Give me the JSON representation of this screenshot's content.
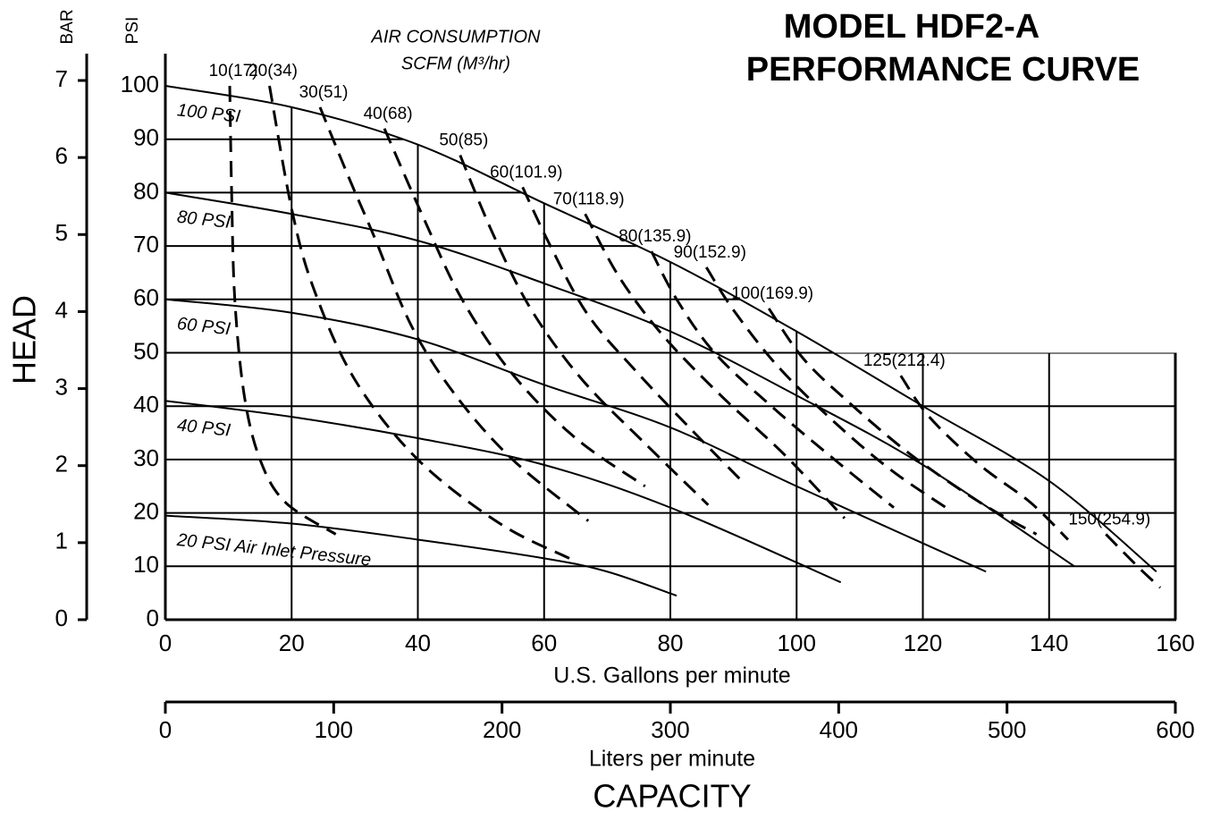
{
  "chart_data": {
    "type": "line",
    "title": "MODEL HDF2-A",
    "subtitle": "PERFORMANCE CURVE",
    "annotation_title": "AIR CONSUMPTION",
    "annotation_units": "SCFM (M³/hr)",
    "xlabel": "U.S. Gallons per minute",
    "x2label": "Liters per minute",
    "capacity_label": "CAPACITY",
    "ylabel": "HEAD",
    "y_unit": "PSI",
    "y2_unit": "BAR",
    "xlim": [
      0,
      160
    ],
    "xticks": [
      0,
      20,
      40,
      60,
      80,
      100,
      120,
      140,
      160
    ],
    "x2lim": [
      0,
      600
    ],
    "x2ticks": [
      0,
      100,
      200,
      300,
      400,
      500,
      600
    ],
    "ylim": [
      0,
      100
    ],
    "yticks": [
      0,
      10,
      20,
      30,
      40,
      50,
      60,
      70,
      80,
      90,
      100
    ],
    "y2lim": [
      0,
      7
    ],
    "y2ticks": [
      0,
      1,
      2,
      3,
      4,
      5,
      6,
      7
    ],
    "grid": true,
    "color": "#000000",
    "series": [
      {
        "name": "100 PSI",
        "style": "solid",
        "x": [
          0,
          20,
          40,
          60,
          80,
          100,
          120,
          140,
          157
        ],
        "values": [
          100,
          96,
          89,
          78,
          67,
          54,
          40,
          26,
          9
        ]
      },
      {
        "name": "80 PSI",
        "style": "solid",
        "x": [
          0,
          20,
          40,
          60,
          80,
          100,
          120,
          144
        ],
        "values": [
          80,
          76,
          71,
          63,
          54,
          42,
          29,
          10
        ]
      },
      {
        "name": "60 PSI",
        "style": "solid",
        "x": [
          0,
          20,
          40,
          60,
          80,
          100,
          130
        ],
        "values": [
          60,
          57.5,
          52.5,
          44,
          36,
          25,
          9
        ]
      },
      {
        "name": "40 PSI",
        "style": "solid",
        "x": [
          0,
          20,
          40,
          60,
          80,
          107
        ],
        "values": [
          41,
          38,
          34,
          29,
          21,
          7
        ]
      },
      {
        "name": "20 PSI Air Inlet Pressure",
        "style": "solid",
        "x": [
          0,
          20,
          40,
          60,
          70,
          81
        ],
        "values": [
          19.5,
          18,
          15,
          11.5,
          9,
          4.5
        ]
      },
      {
        "name": "10(17)",
        "style": "dashed",
        "x": [
          10.2,
          10.5,
          11,
          12.5,
          15,
          19,
          27
        ],
        "values": [
          100,
          80,
          60,
          42,
          30,
          22,
          16
        ]
      },
      {
        "name": "20(34)",
        "style": "dashed",
        "x": [
          16.5,
          20,
          23.5,
          30,
          40,
          53,
          64
        ],
        "values": [
          100,
          77,
          62,
          45,
          30,
          18,
          11.5
        ]
      },
      {
        "name": "30(51)",
        "style": "dashed",
        "x": [
          24.5,
          29,
          33,
          39,
          46,
          55,
          67
        ],
        "values": [
          96,
          83,
          72,
          55,
          42,
          30,
          18.5
        ]
      },
      {
        "name": "40(68)",
        "style": "dashed",
        "x": [
          34.7,
          41,
          47,
          55,
          65,
          76
        ],
        "values": [
          92,
          75,
          60,
          46,
          34,
          25
        ]
      },
      {
        "name": "50(85)",
        "style": "dashed",
        "x": [
          46.7,
          52,
          58,
          66,
          76,
          86
        ],
        "values": [
          87,
          72,
          58,
          45,
          33,
          21.5
        ]
      },
      {
        "name": "60(101.9)",
        "style": "dashed",
        "x": [
          56.6,
          61,
          67,
          75,
          83,
          91.3
        ],
        "values": [
          81,
          70,
          57,
          46,
          36,
          26
        ]
      },
      {
        "name": "70(118.9)",
        "style": "dashed",
        "x": [
          66.5,
          72,
          79,
          88,
          98,
          107.6
        ],
        "values": [
          76,
          64,
          53,
          42,
          31,
          19
        ]
      },
      {
        "name": "80(135.9)",
        "style": "dashed",
        "x": [
          77,
          81,
          87,
          96,
          106,
          115.4
        ],
        "values": [
          69,
          60,
          50,
          40,
          30,
          21
        ]
      },
      {
        "name": "90(152.9)",
        "style": "dashed",
        "x": [
          85.7,
          90,
          97,
          106,
          115,
          124.3
        ],
        "values": [
          66,
          58,
          47.5,
          37,
          28,
          20.5
        ]
      },
      {
        "name": "100(169.9)",
        "style": "dashed",
        "x": [
          95.6,
          101,
          108,
          118,
          129,
          138
        ],
        "values": [
          58.3,
          49,
          41,
          31,
          22,
          16
        ]
      },
      {
        "name": "125(212.4)",
        "style": "dashed",
        "x": [
          116.5,
          121,
          129,
          137,
          143
        ],
        "values": [
          45.7,
          38,
          29,
          22,
          15
        ]
      },
      {
        "name": "150(254.9)",
        "style": "dashed",
        "x": [
          149,
          154,
          157.6
        ],
        "values": [
          16,
          10,
          6
        ]
      }
    ]
  }
}
